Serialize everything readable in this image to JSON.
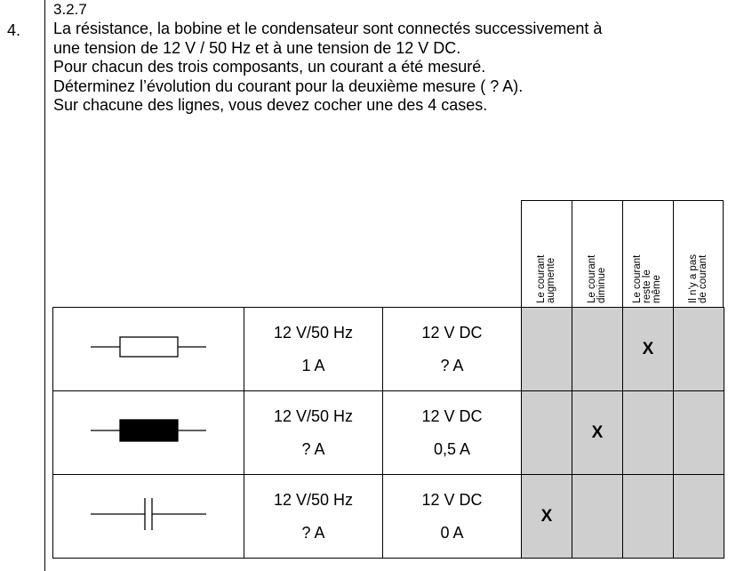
{
  "ref_number": "3.2.7",
  "question_number": "4.",
  "question_lines": [
    "La résistance, la bobine et le condensateur sont connectés successivement à",
    "une tension de 12 V / 50 Hz et à une tension de 12 V DC.",
    "Pour chacun des trois composants, un courant a été mesuré.",
    "Déterminez l’évolution du courant pour la deuxième mesure ( ? A).",
    "Sur chacune des lignes, vous devez cocher une des 4 cases."
  ],
  "column_headers": [
    "Le courant\naugmente",
    "Le courant\ndiminue",
    "Le courant\nreste le\nmême",
    "Il n’y a pas\nde courant"
  ],
  "rows": [
    {
      "component_icon": "resistor-symbol",
      "ac_label": "12 V/50 Hz",
      "ac_value": "1 A",
      "dc_label": "12 V DC",
      "dc_value": "? A",
      "marks": [
        "",
        "",
        "X",
        ""
      ]
    },
    {
      "component_icon": "inductor-symbol",
      "ac_label": "12 V/50 Hz",
      "ac_value": "? A",
      "dc_label": "12 V DC",
      "dc_value": "0,5 A",
      "marks": [
        "",
        "X",
        "",
        ""
      ]
    },
    {
      "component_icon": "capacitor-symbol",
      "ac_label": "12 V/50 Hz",
      "ac_value": "? A",
      "dc_label": "12 V DC",
      "dc_value": "0 A",
      "marks": [
        "X",
        "",
        "",
        ""
      ]
    }
  ],
  "colors": {
    "answer_cell": "#cfcfcf",
    "lines": "#000000"
  }
}
